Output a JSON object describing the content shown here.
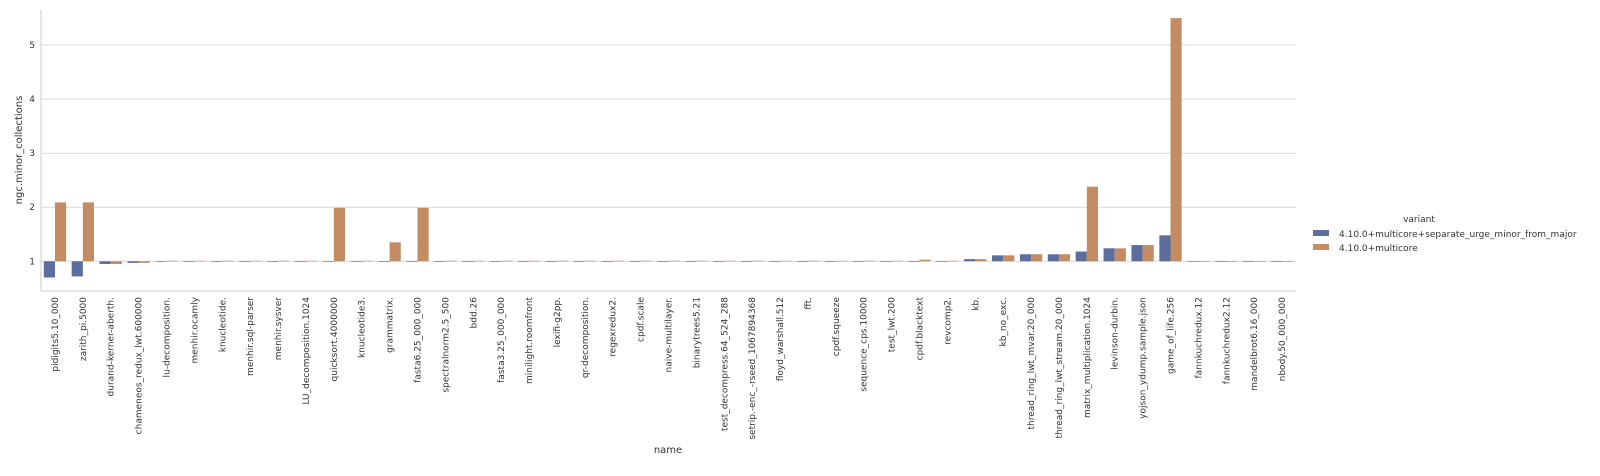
{
  "chart_data": {
    "type": "bar",
    "title": "",
    "xlabel": "name",
    "ylabel": "ngc.minor_collections",
    "ylim": [
      0.45,
      5.65
    ],
    "baseline": 1,
    "yticks": [
      1,
      2,
      3,
      4,
      5
    ],
    "grid": true,
    "legend": {
      "title": "variant",
      "placement": "right-center",
      "entries": [
        "4.10.0+multicore+separate_urge_minor_from_major",
        "4.10.0+multicore"
      ]
    },
    "categories": [
      "pidigits5.10_000",
      "zarith_pi.5000",
      "durand-kerner-aberth.",
      "chameneos_redux_lwt.600000",
      "lu-decomposition.",
      "menhir.ocamly",
      "knucleotide.",
      "menhir.sql-parser",
      "menhir.sysver",
      "LU_decomposition.1024",
      "quicksort.4000000",
      "knucleotide3.",
      "grammatrix.",
      "fasta6.25_000_000",
      "spectralnorm2.5_500",
      "bdd.26",
      "fasta3.25_000_000",
      "minilight.roomfront",
      "lexifi-g2pp.",
      "qr-decomposition.",
      "regexredux2.",
      "cpdf.scale",
      "naive-multilayer.",
      "binarytrees5.21",
      "test_decompress.64_524_288",
      "setrip.-enc_-rseed_1067894368",
      "floyd_warshall.512",
      "fft.",
      "cpdf.squeeze",
      "sequence_cps.10000",
      "test_lwt.200",
      "cpdf.blacktext",
      "revcomp2.",
      "kb.",
      "kb_no_exc.",
      "thread_ring_lwt_mvar.20_000",
      "thread_ring_lwt_stream.20_000",
      "matrix_multiplication.1024",
      "levinson-durbin.",
      "yojson_ydump.sample.json",
      "game_of_life.256",
      "fannkuchredux.12",
      "fannkuchredux2.12",
      "mandelbrot6.16_000",
      "nbody.50_000_000"
    ],
    "series": [
      {
        "name": "4.10.0+multicore+separate_urge_minor_from_major",
        "color": "#5b6e9e",
        "values": [
          0.7,
          0.72,
          0.95,
          0.97,
          1.0,
          1.0,
          1.0,
          1.0,
          1.0,
          1.0,
          1.0,
          1.0,
          1.0,
          1.0,
          1.0,
          1.0,
          1.0,
          1.0,
          1.0,
          1.0,
          1.0,
          1.0,
          1.0,
          1.0,
          1.0,
          1.0,
          1.0,
          1.0,
          1.0,
          1.0,
          1.0,
          1.0,
          1.0,
          1.04,
          1.11,
          1.13,
          1.13,
          1.18,
          1.24,
          1.3,
          1.48,
          1.0,
          1.0,
          1.0,
          1.0
        ]
      },
      {
        "name": "4.10.0+multicore",
        "color": "#c48c63",
        "values": [
          2.09,
          2.09,
          0.95,
          0.97,
          1.01,
          1.01,
          1.01,
          1.01,
          1.01,
          1.01,
          1.99,
          1.01,
          1.35,
          1.99,
          1.01,
          1.01,
          1.01,
          1.01,
          1.01,
          1.01,
          1.01,
          1.01,
          1.01,
          1.01,
          1.01,
          1.01,
          1.01,
          1.01,
          1.01,
          1.01,
          1.01,
          1.03,
          1.01,
          1.04,
          1.11,
          1.13,
          1.13,
          2.38,
          1.24,
          1.3,
          5.5,
          1.0,
          1.0,
          1.0,
          1.0
        ]
      }
    ]
  }
}
